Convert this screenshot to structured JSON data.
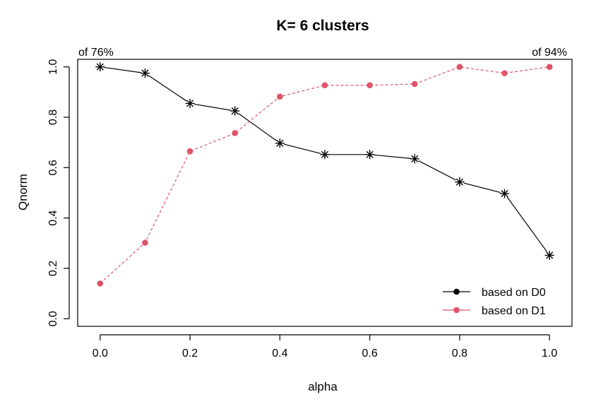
{
  "chart_data": {
    "type": "line",
    "title": "K= 6 clusters",
    "xlabel": "alpha",
    "ylabel": "Qnorm",
    "xlim": [
      -0.05,
      1.05
    ],
    "ylim": [
      -0.03,
      1.03
    ],
    "x_ticks": [
      "0.0",
      "0.2",
      "0.4",
      "0.6",
      "0.8",
      "1.0"
    ],
    "y_ticks": [
      "0.0",
      "0.2",
      "0.4",
      "0.6",
      "0.8",
      "1.0"
    ],
    "x": [
      0.0,
      0.1,
      0.2,
      0.3,
      0.4,
      0.5,
      0.6,
      0.7,
      0.8,
      0.9,
      1.0
    ],
    "series": [
      {
        "name": "based on D0",
        "color": "#000000",
        "marker": "asterisk",
        "line": "solid",
        "values": [
          1.0,
          0.975,
          0.855,
          0.825,
          0.697,
          0.652,
          0.652,
          0.635,
          0.543,
          0.497,
          0.252
        ]
      },
      {
        "name": "based on D1",
        "color": "#DF536B",
        "marker": "dot",
        "line": "dashed",
        "values": [
          0.14,
          0.302,
          0.665,
          0.737,
          0.882,
          0.927,
          0.927,
          0.932,
          1.0,
          0.975,
          1.0
        ]
      }
    ],
    "annotations": {
      "top_left": "of 76%",
      "top_right": "of 94%"
    },
    "legend": {
      "position": "bottom-right",
      "marker": "dot"
    },
    "grid": false
  }
}
